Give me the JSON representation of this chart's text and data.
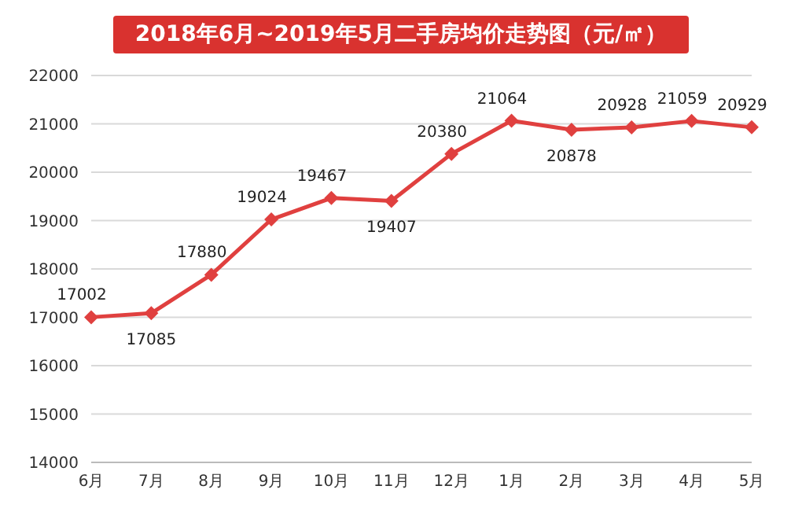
{
  "chart_data": {
    "type": "line",
    "title": "2018年6月~2019年5月二手房均价走势图（元/㎡）",
    "categories": [
      "6月",
      "7月",
      "8月",
      "9月",
      "10月",
      "11月",
      "12月",
      "1月",
      "2月",
      "3月",
      "4月",
      "5月"
    ],
    "values": [
      17002,
      17085,
      17880,
      19024,
      19467,
      19407,
      20380,
      21064,
      20878,
      20928,
      21059,
      20929
    ],
    "color": "#e0403f",
    "ylim": [
      14000,
      22000
    ],
    "yticks": [
      14000,
      15000,
      16000,
      17000,
      18000,
      19000,
      20000,
      21000,
      22000
    ],
    "grid": "y",
    "marker": "diamond",
    "data_labels": true
  }
}
